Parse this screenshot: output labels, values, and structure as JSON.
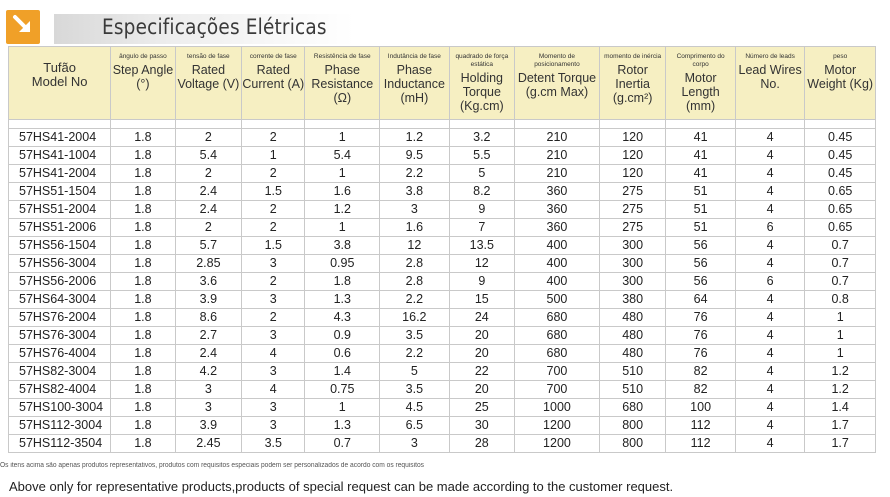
{
  "page": {
    "title": "Especificações Elétricas",
    "logo_icon": "arrow-down-right-icon",
    "accent_color": "#f0a028",
    "header_bg": "#f6efc2"
  },
  "table": {
    "columns": [
      {
        "pt": "",
        "en": "Tufão",
        "en2": "Model No"
      },
      {
        "pt": "ângulo de passo",
        "en": "Step Angle (°)"
      },
      {
        "pt": "tensão de fase",
        "en": "Rated Voltage (V)"
      },
      {
        "pt": "corrente de fase",
        "en": "Rated Current (A)"
      },
      {
        "pt": "Resistência de fase",
        "en": "Phase Resistance (Ω)"
      },
      {
        "pt": "Indutância de fase",
        "en": "Phase Inductance (mH)"
      },
      {
        "pt": "quadrado de força estática",
        "en": "Holding Torque (Kg.cm)"
      },
      {
        "pt": "Momento de posicionamento",
        "en": "Detent Torque (g.cm Max)"
      },
      {
        "pt": "momento de inércia",
        "en": "Rotor Inertia (g.cm²)"
      },
      {
        "pt": "Comprimento do corpo",
        "en": "Motor Length (mm)"
      },
      {
        "pt": "Número de leads",
        "en": "Lead Wires No."
      },
      {
        "pt": "peso",
        "en": "Motor Weight (Kg)"
      }
    ],
    "rows": [
      [
        "57HS41-2004",
        "1.8",
        "2",
        "2",
        "1",
        "1.2",
        "3.2",
        "210",
        "120",
        "41",
        "4",
        "0.45"
      ],
      [
        "57HS41-1004",
        "1.8",
        "5.4",
        "1",
        "5.4",
        "9.5",
        "5.5",
        "210",
        "120",
        "41",
        "4",
        "0.45"
      ],
      [
        "57HS41-2004",
        "1.8",
        "2",
        "2",
        "1",
        "2.2",
        "5",
        "210",
        "120",
        "41",
        "4",
        "0.45"
      ],
      [
        "57HS51-1504",
        "1.8",
        "2.4",
        "1.5",
        "1.6",
        "3.8",
        "8.2",
        "360",
        "275",
        "51",
        "4",
        "0.65"
      ],
      [
        "57HS51-2004",
        "1.8",
        "2.4",
        "2",
        "1.2",
        "3",
        "9",
        "360",
        "275",
        "51",
        "4",
        "0.65"
      ],
      [
        "57HS51-2006",
        "1.8",
        "2",
        "2",
        "1",
        "1.6",
        "7",
        "360",
        "275",
        "51",
        "6",
        "0.65"
      ],
      [
        "57HS56-1504",
        "1.8",
        "5.7",
        "1.5",
        "3.8",
        "12",
        "13.5",
        "400",
        "300",
        "56",
        "4",
        "0.7"
      ],
      [
        "57HS56-3004",
        "1.8",
        "2.85",
        "3",
        "0.95",
        "2.8",
        "12",
        "400",
        "300",
        "56",
        "4",
        "0.7"
      ],
      [
        "57HS56-2006",
        "1.8",
        "3.6",
        "2",
        "1.8",
        "2.8",
        "9",
        "400",
        "300",
        "56",
        "6",
        "0.7"
      ],
      [
        "57HS64-3004",
        "1.8",
        "3.9",
        "3",
        "1.3",
        "2.2",
        "15",
        "500",
        "380",
        "64",
        "4",
        "0.8"
      ],
      [
        "57HS76-2004",
        "1.8",
        "8.6",
        "2",
        "4.3",
        "16.2",
        "24",
        "680",
        "480",
        "76",
        "4",
        "1"
      ],
      [
        "57HS76-3004",
        "1.8",
        "2.7",
        "3",
        "0.9",
        "3.5",
        "20",
        "680",
        "480",
        "76",
        "4",
        "1"
      ],
      [
        "57HS76-4004",
        "1.8",
        "2.4",
        "4",
        "0.6",
        "2.2",
        "20",
        "680",
        "480",
        "76",
        "4",
        "1"
      ],
      [
        "57HS82-3004",
        "1.8",
        "4.2",
        "3",
        "1.4",
        "5",
        "22",
        "700",
        "510",
        "82",
        "4",
        "1.2"
      ],
      [
        "57HS82-4004",
        "1.8",
        "3",
        "4",
        "0.75",
        "3.5",
        "20",
        "700",
        "510",
        "82",
        "4",
        "1.2"
      ],
      [
        "57HS100-3004",
        "1.8",
        "3",
        "3",
        "1",
        "4.5",
        "25",
        "1000",
        "680",
        "100",
        "4",
        "1.4"
      ],
      [
        "57HS112-3004",
        "1.8",
        "3.9",
        "3",
        "1.3",
        "6.5",
        "30",
        "1200",
        "800",
        "112",
        "4",
        "1.7"
      ],
      [
        "57HS112-3504",
        "1.8",
        "2.45",
        "3.5",
        "0.7",
        "3",
        "28",
        "1200",
        "800",
        "112",
        "4",
        "1.7"
      ]
    ]
  },
  "notes": {
    "pt": "Os itens acima são apenas produtos representativos, produtos com requisitos especiais podem ser personalizados de acordo com os requisitos",
    "en": "Above only for representative products,products of special request can be made according to the customer request."
  }
}
